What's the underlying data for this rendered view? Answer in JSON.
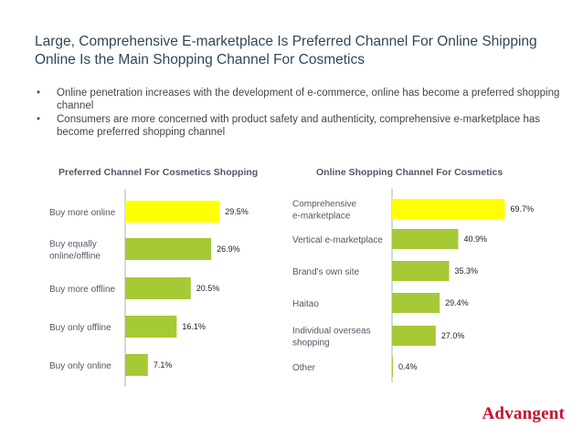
{
  "title_line1": "Large, Comprehensive E-marketplace Is Preferred Channel For Online Shipping",
  "title_line2": "Online Is the Main Shopping Channel For Cosmetics",
  "bullets": [
    "Online penetration increases with the development of e-commerce, online has become a preferred shopping channel",
    "Consumers are more concerned with product safety and authenticity, comprehensive e-marketplace has become preferred shopping channel"
  ],
  "brand": "Advangent",
  "colors": {
    "highlight": "#ffff00",
    "bar": "#a6c936",
    "axis": "#b0b0b0"
  },
  "chart_data": [
    {
      "type": "bar",
      "orientation": "horizontal",
      "title": "Preferred Channel For Cosmetics Shopping",
      "categories": [
        "Buy more online",
        "Buy equally online/offline",
        "Buy more offline",
        "Buy only offline",
        "Buy only online"
      ],
      "category_lines": [
        [
          "Buy more online"
        ],
        [
          "Buy equally",
          "online/offline"
        ],
        [
          "Buy more offline"
        ],
        [
          "Buy only offline"
        ],
        [
          "Buy only online"
        ]
      ],
      "values": [
        29.5,
        26.9,
        20.5,
        16.1,
        7.1
      ],
      "value_labels": [
        "29.5%",
        "26.9%",
        "20.5%",
        "16.1%",
        "7.1%"
      ],
      "highlight_index": 0,
      "xlim": [
        0,
        32
      ]
    },
    {
      "type": "bar",
      "orientation": "horizontal",
      "title": "Online Shopping Channel For Cosmetics",
      "categories": [
        "Comprehensive e-marketplace",
        "Vertical e-marketplace",
        "Brand's own site",
        "Haitao",
        "Individual overseas shopping",
        "Other"
      ],
      "category_lines": [
        [
          "Comprehensive",
          "e-marketplace"
        ],
        [
          "Vertical e-marketplace"
        ],
        [
          "Brand's own site"
        ],
        [
          "Haitao"
        ],
        [
          "Individual overseas",
          "shopping"
        ],
        [
          "Other"
        ]
      ],
      "values": [
        69.7,
        40.9,
        35.3,
        29.4,
        27.0,
        0.4
      ],
      "value_labels": [
        "69.7%",
        "40.9%",
        "35.3%",
        "29.4%",
        "27.0%",
        "0.4%"
      ],
      "highlight_index": 0,
      "xlim": [
        0,
        70
      ]
    }
  ]
}
